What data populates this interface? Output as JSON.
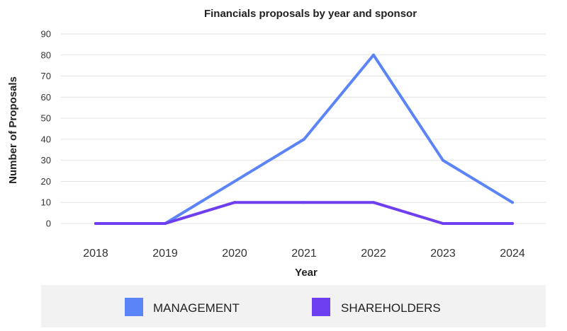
{
  "chart_data": {
    "type": "line",
    "title": "Financials proposals by year and sponsor",
    "xlabel": "Year",
    "ylabel": "Number of Proposals",
    "categories": [
      "2018",
      "2019",
      "2020",
      "2021",
      "2022",
      "2023",
      "2024"
    ],
    "ylim": [
      0,
      90
    ],
    "yticks": [
      0,
      10,
      20,
      30,
      40,
      50,
      60,
      70,
      80,
      90
    ],
    "grid": true,
    "legend_position": "bottom",
    "series": [
      {
        "name": "MANAGEMENT",
        "color": "#5b84f8",
        "values": [
          0,
          0,
          20,
          40,
          80,
          30,
          10
        ]
      },
      {
        "name": "SHAREHOLDERS",
        "color": "#6e3ff0",
        "values": [
          0,
          0,
          10,
          10,
          10,
          0,
          0
        ]
      }
    ]
  }
}
